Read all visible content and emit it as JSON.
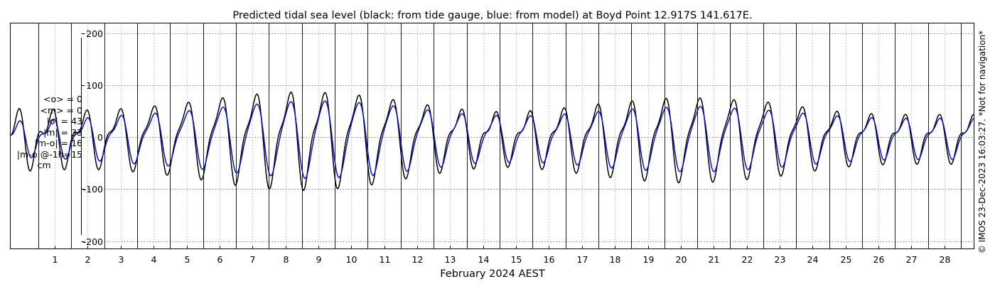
{
  "chart_data": {
    "type": "line",
    "title": "Predicted tidal sea level (black: from tide gauge, blue: from model) at Boyd Point 12.917S 141.617E.",
    "xlabel": "February 2024 AEST",
    "ylabel": "",
    "x_ticks": [
      "1",
      "2",
      "3",
      "4",
      "5",
      "6",
      "7",
      "8",
      "9",
      "10",
      "11",
      "12",
      "13",
      "14",
      "15",
      "16",
      "17",
      "18",
      "19",
      "20",
      "21",
      "22",
      "23",
      "24",
      "25",
      "26",
      "27",
      "28"
    ],
    "y_ticks": [
      200,
      100,
      0,
      -100,
      -200
    ],
    "xlim_days": [
      -0.35,
      28.9
    ],
    "ylim": [
      -215,
      220
    ],
    "grid": true,
    "series": [
      {
        "name": "tide gauge",
        "color": "#000000",
        "amp_main": [
          42,
          44,
          44,
          48,
          55,
          62,
          70,
          77,
          82,
          84,
          82,
          76,
          66,
          55,
          46,
          42,
          46,
          53,
          60,
          67,
          72,
          74,
          71,
          66,
          56,
          46,
          40,
          38,
          38
        ],
        "amp_second": [
          28,
          26,
          22,
          20,
          18,
          18,
          20,
          24,
          26,
          26,
          24,
          22,
          20,
          20,
          20,
          20,
          20,
          20,
          22,
          22,
          22,
          20,
          18,
          18,
          18,
          18,
          18,
          18,
          18
        ],
        "offset_hours": 0
      },
      {
        "name": "model",
        "color": "#0a14b4",
        "amp_main": [
          25,
          30,
          32,
          38,
          44,
          48,
          55,
          62,
          67,
          72,
          70,
          66,
          58,
          50,
          42,
          40,
          40,
          44,
          50,
          55,
          58,
          60,
          56,
          52,
          46,
          40,
          36,
          34,
          34
        ],
        "amp_second": [
          14,
          14,
          14,
          13,
          12,
          12,
          12,
          12,
          12,
          12,
          12,
          12,
          12,
          12,
          12,
          12,
          12,
          12,
          12,
          12,
          12,
          12,
          12,
          12,
          12,
          12,
          12,
          12,
          12
        ],
        "offset_hours": 0.7
      }
    ]
  },
  "stats": {
    "mean_obs": "<o> = 0",
    "mean_model": "<m> = 0",
    "abs_obs": "|o| = 43",
    "abs_model": "|m| = 33",
    "abs_diff": "|m-o| = 16",
    "abs_diff_lag": "|m-o|@-1h=15",
    "unit": "cm"
  },
  "credit": "© IMOS 23-Dec-2023 16:03:27. *Not for navigation*"
}
